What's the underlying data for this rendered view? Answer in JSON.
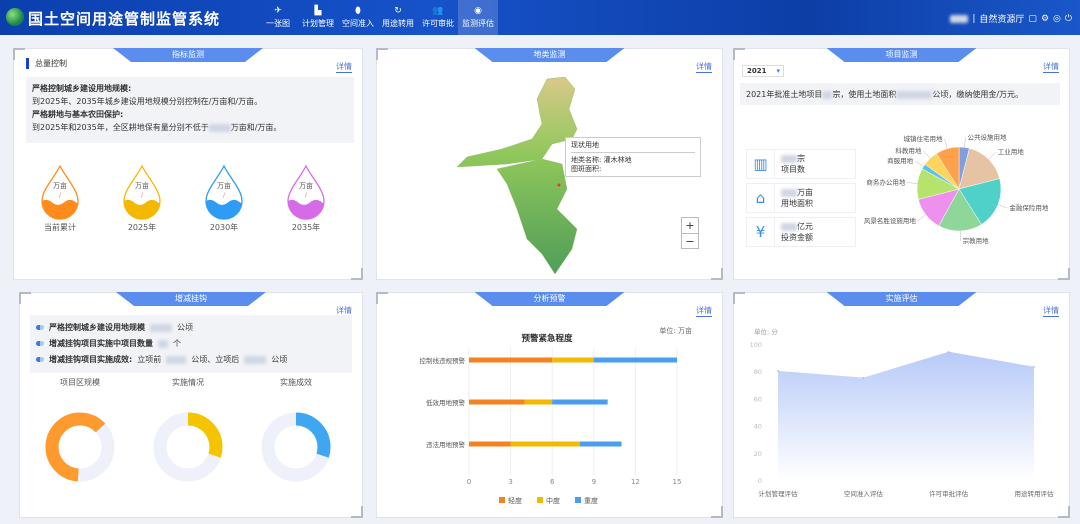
{
  "header": {
    "title": "国土空间用途管制监管系统",
    "nav": [
      {
        "label": "一张图",
        "icon": "plane-icon"
      },
      {
        "label": "计划管理",
        "icon": "chart-icon"
      },
      {
        "label": "空间准入",
        "icon": "pin-icon"
      },
      {
        "label": "用途转用",
        "icon": "refresh-icon"
      },
      {
        "label": "许可审批",
        "icon": "users-icon"
      },
      {
        "label": "监测评估",
        "icon": "eye-icon",
        "active": true
      }
    ],
    "org": "自然资源厅"
  },
  "common": {
    "more": "详情"
  },
  "indicator": {
    "title": "指标监测",
    "subtitle": "总量控制",
    "h1": "严格控制城乡建设用地规模:",
    "p1": "到2025年、2035年城乡建设用地规模分别控制在/万亩和/万亩。",
    "h2": "严格耕地与基本农田保护:",
    "p2a": "到2025年和2035年，全区耕地保有量分别不低于",
    "p2b": "万亩和/万亩。",
    "drops": [
      {
        "unit": "万亩",
        "value": "/",
        "label": "当前累计",
        "color": "#ff8c1a",
        "fill": 0.4
      },
      {
        "unit": "万亩",
        "value": "/",
        "label": "2025年",
        "color": "#f5b800",
        "fill": 0.4
      },
      {
        "unit": "万亩",
        "value": "/",
        "label": "2030年",
        "color": "#2e9cf5",
        "fill": 0.4
      },
      {
        "unit": "万亩",
        "value": "/",
        "label": "2035年",
        "color": "#d66be8",
        "fill": 0.4
      }
    ]
  },
  "landtype": {
    "title": "地类监测",
    "popup": {
      "title": "现状用地",
      "name_label": "地类名称:",
      "name_value": "灌木林地",
      "area_label": "图斑面积:"
    },
    "zoom_in": "+",
    "zoom_out": "−"
  },
  "project": {
    "title": "项目监测",
    "year": "2021",
    "summary_a": "2021年批准土地项目",
    "summary_b": "宗，使用土地面积",
    "summary_c": "公顷，缴纳使用金/万元。",
    "stats": [
      {
        "unit": "宗",
        "label": "项目数",
        "icon": "books-icon"
      },
      {
        "unit": "万亩",
        "label": "用地面积",
        "icon": "house-icon"
      },
      {
        "unit": "亿元",
        "label": "投资金额",
        "icon": "money-bag-icon"
      }
    ]
  },
  "chart_data": [
    {
      "type": "pie",
      "categories": [
        "公共设施用地",
        "工业用地",
        "金融保险用地",
        "宗教用地",
        "风景名胜设施用地",
        "商务办公用地",
        "商服用地",
        "科教用地",
        "城镇住宅用地"
      ],
      "values": [
        4,
        17,
        20,
        17,
        13,
        12,
        2,
        6,
        9
      ],
      "colors": [
        "#7f9fe0",
        "#e6c3a2",
        "#4fd1c9",
        "#8fd69a",
        "#ee90ee",
        "#b6e36b",
        "#5bc3ea",
        "#fdd45e",
        "#ffa04a"
      ]
    },
    {
      "type": "bar",
      "orientation": "horizontal",
      "stacked": true,
      "title": "预警紧急程度",
      "unit": "单位: 万亩",
      "categories": [
        "控制线违规预警",
        "低效用地预警",
        "违法用地预警"
      ],
      "series": [
        {
          "name": "轻度",
          "values": [
            6,
            4,
            3
          ],
          "color": "#f58220"
        },
        {
          "name": "中度",
          "values": [
            3,
            2,
            5
          ],
          "color": "#f5b800"
        },
        {
          "name": "重度",
          "values": [
            6,
            4,
            3
          ],
          "color": "#4a9ef0"
        }
      ],
      "xlim": [
        0,
        15
      ],
      "xticks": [
        0,
        3,
        6,
        9,
        12,
        15
      ],
      "legend": "bottom"
    },
    {
      "type": "area",
      "unit": "单位: 分",
      "categories": [
        "计划管理评估",
        "空间准入评估",
        "许可审批评估",
        "用途转用评估"
      ],
      "values": [
        81,
        76,
        95,
        84
      ],
      "ylim": [
        0,
        100
      ],
      "yticks": [
        0,
        20,
        40,
        60,
        80,
        100
      ],
      "color": "#7c9ff0"
    },
    {
      "type": "donut",
      "categories": [
        "项目区规模",
        "实施情况",
        "实施成效"
      ],
      "values": [
        0.62,
        0.3,
        0.3
      ],
      "colors": [
        "#ff9a2e",
        "#f5c400",
        "#3fa6f2"
      ]
    }
  ],
  "linkage": {
    "title": "增减挂钩",
    "items": [
      {
        "a": "严格控制城乡建设用地规模",
        "b": "公顷"
      },
      {
        "a": "增减挂钩项目实施中项目数量",
        "b": "个"
      },
      {
        "a": "增减挂钩项目实施成效:",
        "c": "立项前",
        "d": "公顷、立项后",
        "b": "公顷"
      }
    ]
  },
  "warning": {
    "title": "分析预警"
  },
  "evaluation": {
    "title": "实施评估"
  }
}
